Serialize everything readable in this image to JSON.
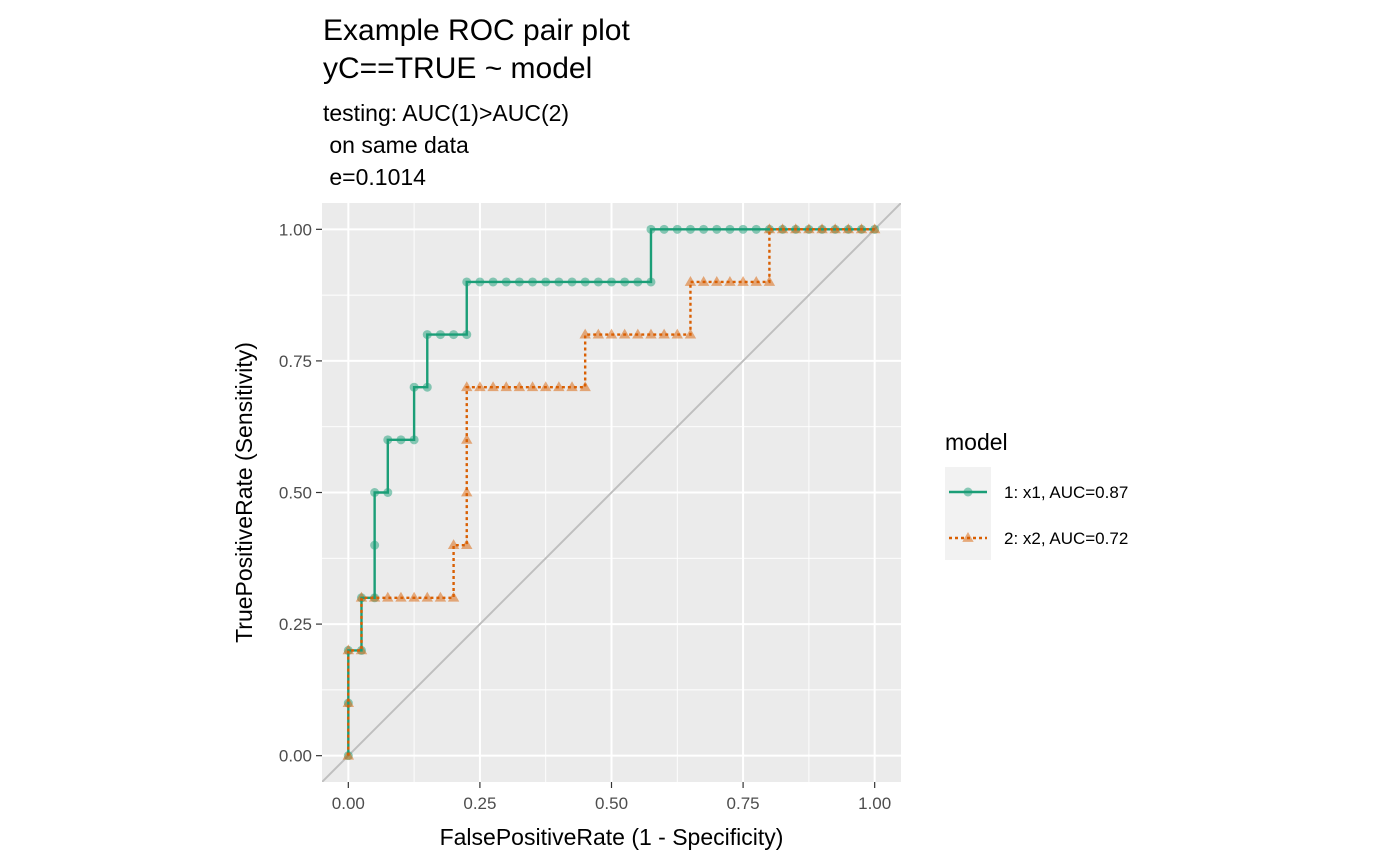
{
  "chart_data": {
    "type": "line",
    "title": [
      "Example ROC pair plot",
      "yC==TRUE ~ model"
    ],
    "subtitle": [
      "testing: AUC(1)>AUC(2)",
      " on same data",
      " e=0.1014"
    ],
    "xlabel": "FalsePositiveRate (1 - Specificity)",
    "ylabel": "TruePositiveRate (Sensitivity)",
    "xlim": [
      -0.05,
      1.05
    ],
    "ylim": [
      -0.05,
      1.05
    ],
    "x_ticks": [
      0,
      0.25,
      0.5,
      0.75,
      1
    ],
    "x_tick_labels": [
      "0.00",
      "0.25",
      "0.50",
      "0.75",
      "1.00"
    ],
    "y_ticks": [
      0,
      0.25,
      0.5,
      0.75,
      1
    ],
    "y_tick_labels": [
      "0.00",
      "0.25",
      "0.50",
      "0.75",
      "1.00"
    ],
    "grid": true,
    "diagonal_reference": true,
    "legend": {
      "title": "model",
      "position": "right"
    },
    "colors": {
      "panel": "#ebebeb",
      "grid": "#ffffff",
      "diagonal": "#bfbfbf",
      "legend_key": "#f2f2f2"
    },
    "series": [
      {
        "name": "1: x1, AUC=0.87",
        "color": "#1b9e77",
        "marker": "circle",
        "line": "solid",
        "points": [
          [
            0,
            0
          ],
          [
            0,
            0.1
          ],
          [
            0,
            0.2
          ],
          [
            0.025,
            0.2
          ],
          [
            0.025,
            0.3
          ],
          [
            0.05,
            0.3
          ],
          [
            0.05,
            0.4
          ],
          [
            0.05,
            0.5
          ],
          [
            0.075,
            0.5
          ],
          [
            0.075,
            0.6
          ],
          [
            0.1,
            0.6
          ],
          [
            0.125,
            0.6
          ],
          [
            0.125,
            0.7
          ],
          [
            0.15,
            0.7
          ],
          [
            0.15,
            0.8
          ],
          [
            0.175,
            0.8
          ],
          [
            0.2,
            0.8
          ],
          [
            0.225,
            0.8
          ],
          [
            0.225,
            0.9
          ],
          [
            0.25,
            0.9
          ],
          [
            0.275,
            0.9
          ],
          [
            0.3,
            0.9
          ],
          [
            0.325,
            0.9
          ],
          [
            0.35,
            0.9
          ],
          [
            0.375,
            0.9
          ],
          [
            0.4,
            0.9
          ],
          [
            0.425,
            0.9
          ],
          [
            0.45,
            0.9
          ],
          [
            0.475,
            0.9
          ],
          [
            0.5,
            0.9
          ],
          [
            0.525,
            0.9
          ],
          [
            0.55,
            0.9
          ],
          [
            0.575,
            0.9
          ],
          [
            0.575,
            1
          ],
          [
            0.6,
            1
          ],
          [
            0.625,
            1
          ],
          [
            0.65,
            1
          ],
          [
            0.675,
            1
          ],
          [
            0.7,
            1
          ],
          [
            0.725,
            1
          ],
          [
            0.75,
            1
          ],
          [
            0.775,
            1
          ],
          [
            0.8,
            1
          ],
          [
            0.825,
            1
          ],
          [
            0.85,
            1
          ],
          [
            0.875,
            1
          ],
          [
            0.9,
            1
          ],
          [
            0.925,
            1
          ],
          [
            0.95,
            1
          ],
          [
            0.975,
            1
          ],
          [
            1,
            1
          ]
        ]
      },
      {
        "name": "2: x2, AUC=0.72",
        "color": "#d95f02",
        "marker": "triangle",
        "line": "dotted",
        "points": [
          [
            0,
            0
          ],
          [
            0,
            0.1
          ],
          [
            0,
            0.2
          ],
          [
            0.025,
            0.2
          ],
          [
            0.025,
            0.3
          ],
          [
            0.05,
            0.3
          ],
          [
            0.075,
            0.3
          ],
          [
            0.1,
            0.3
          ],
          [
            0.125,
            0.3
          ],
          [
            0.15,
            0.3
          ],
          [
            0.175,
            0.3
          ],
          [
            0.2,
            0.3
          ],
          [
            0.2,
            0.4
          ],
          [
            0.225,
            0.4
          ],
          [
            0.225,
            0.5
          ],
          [
            0.225,
            0.6
          ],
          [
            0.225,
            0.7
          ],
          [
            0.25,
            0.7
          ],
          [
            0.275,
            0.7
          ],
          [
            0.3,
            0.7
          ],
          [
            0.325,
            0.7
          ],
          [
            0.35,
            0.7
          ],
          [
            0.375,
            0.7
          ],
          [
            0.4,
            0.7
          ],
          [
            0.425,
            0.7
          ],
          [
            0.45,
            0.7
          ],
          [
            0.45,
            0.8
          ],
          [
            0.475,
            0.8
          ],
          [
            0.5,
            0.8
          ],
          [
            0.525,
            0.8
          ],
          [
            0.55,
            0.8
          ],
          [
            0.575,
            0.8
          ],
          [
            0.6,
            0.8
          ],
          [
            0.625,
            0.8
          ],
          [
            0.65,
            0.8
          ],
          [
            0.65,
            0.9
          ],
          [
            0.675,
            0.9
          ],
          [
            0.7,
            0.9
          ],
          [
            0.725,
            0.9
          ],
          [
            0.75,
            0.9
          ],
          [
            0.775,
            0.9
          ],
          [
            0.8,
            0.9
          ],
          [
            0.8,
            1
          ],
          [
            0.825,
            1
          ],
          [
            0.85,
            1
          ],
          [
            0.875,
            1
          ],
          [
            0.9,
            1
          ],
          [
            0.925,
            1
          ],
          [
            0.95,
            1
          ],
          [
            0.975,
            1
          ],
          [
            1,
            1
          ]
        ]
      }
    ]
  }
}
